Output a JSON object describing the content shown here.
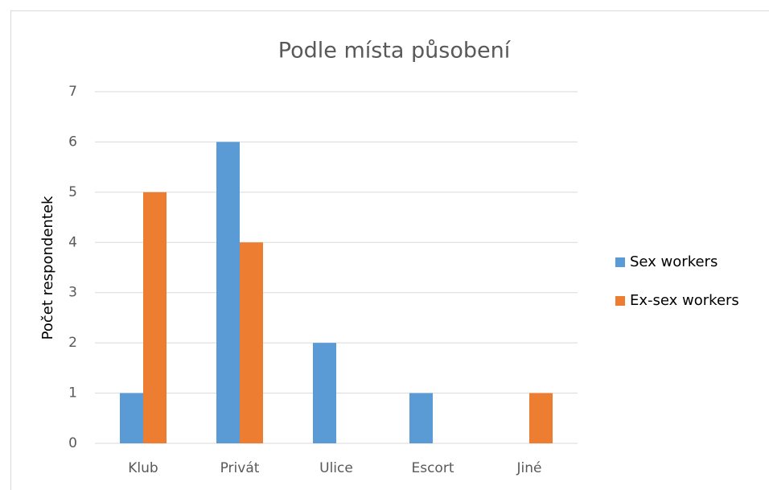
{
  "chart_data": {
    "type": "bar",
    "title": "Podle místa působení",
    "y_label": "Počet respondentek",
    "categories": [
      "Klub",
      "Privát",
      "Ulice",
      "Escort",
      "Jiné"
    ],
    "series": [
      {
        "name": "Sex workers",
        "color": "#5b9bd5",
        "values": [
          1,
          6,
          2,
          1,
          0
        ]
      },
      {
        "name": "Ex-sex workers",
        "color": "#ed7d31",
        "values": [
          5,
          4,
          0,
          0,
          1
        ]
      }
    ],
    "ylim": [
      0,
      7
    ],
    "yticks": [
      0,
      1,
      2,
      3,
      4,
      5,
      6,
      7
    ],
    "grid": true,
    "legend": "right"
  }
}
